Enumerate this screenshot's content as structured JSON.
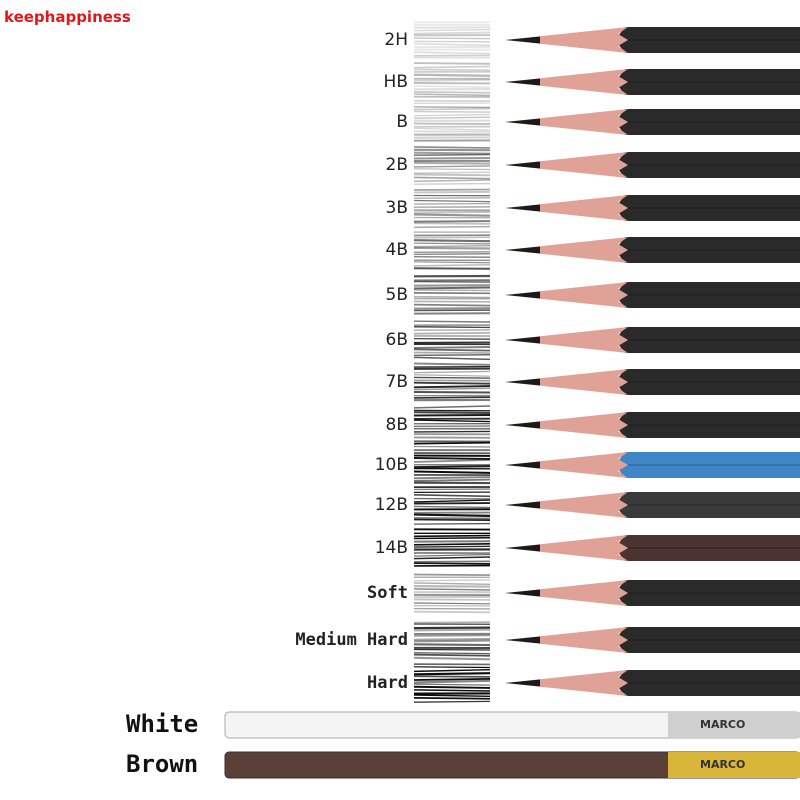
{
  "watermark": "keephappiness",
  "grades": [
    "2H",
    "HB",
    "B",
    "2B",
    "3B",
    "4B",
    "5B",
    "6B",
    "7B",
    "8B",
    "10B",
    "12B",
    "14B",
    "Soft",
    "Medium Hard",
    "Hard"
  ],
  "color_pencils": [
    {
      "label": "White",
      "brand": "MARCO"
    },
    {
      "label": "Brown",
      "brand": "MARCO"
    }
  ]
}
